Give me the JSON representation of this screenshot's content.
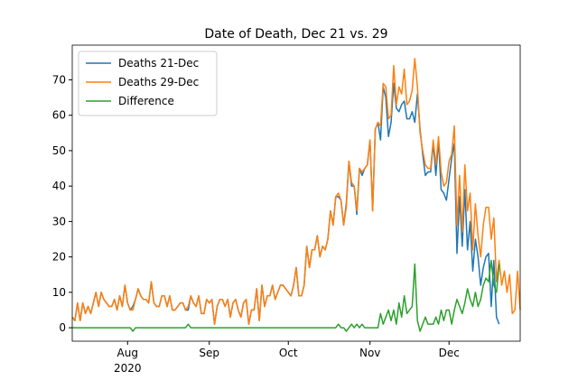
{
  "chart_data": {
    "type": "line",
    "title": "Date of Death, Dec 21 vs. 29",
    "x": [
      "2020-07-11",
      "2020-07-12",
      "2020-07-13",
      "2020-07-14",
      "2020-07-15",
      "2020-07-16",
      "2020-07-17",
      "2020-07-18",
      "2020-07-19",
      "2020-07-20",
      "2020-07-21",
      "2020-07-22",
      "2020-07-23",
      "2020-07-24",
      "2020-07-25",
      "2020-07-26",
      "2020-07-27",
      "2020-07-28",
      "2020-07-29",
      "2020-07-30",
      "2020-07-31",
      "2020-08-01",
      "2020-08-02",
      "2020-08-03",
      "2020-08-04",
      "2020-08-05",
      "2020-08-06",
      "2020-08-07",
      "2020-08-08",
      "2020-08-09",
      "2020-08-10",
      "2020-08-11",
      "2020-08-12",
      "2020-08-13",
      "2020-08-14",
      "2020-08-15",
      "2020-08-16",
      "2020-08-17",
      "2020-08-18",
      "2020-08-19",
      "2020-08-20",
      "2020-08-21",
      "2020-08-22",
      "2020-08-23",
      "2020-08-24",
      "2020-08-25",
      "2020-08-26",
      "2020-08-27",
      "2020-08-28",
      "2020-08-29",
      "2020-08-30",
      "2020-08-31",
      "2020-09-01",
      "2020-09-02",
      "2020-09-03",
      "2020-09-04",
      "2020-09-05",
      "2020-09-06",
      "2020-09-07",
      "2020-09-08",
      "2020-09-09",
      "2020-09-10",
      "2020-09-11",
      "2020-09-12",
      "2020-09-13",
      "2020-09-14",
      "2020-09-15",
      "2020-09-16",
      "2020-09-17",
      "2020-09-18",
      "2020-09-19",
      "2020-09-20",
      "2020-09-21",
      "2020-09-22",
      "2020-09-23",
      "2020-09-24",
      "2020-09-25",
      "2020-09-26",
      "2020-09-27",
      "2020-09-28",
      "2020-09-29",
      "2020-09-30",
      "2020-10-01",
      "2020-10-02",
      "2020-10-03",
      "2020-10-04",
      "2020-10-05",
      "2020-10-06",
      "2020-10-07",
      "2020-10-08",
      "2020-10-09",
      "2020-10-10",
      "2020-10-11",
      "2020-10-12",
      "2020-10-13",
      "2020-10-14",
      "2020-10-15",
      "2020-10-16",
      "2020-10-17",
      "2020-10-18",
      "2020-10-19",
      "2020-10-20",
      "2020-10-21",
      "2020-10-22",
      "2020-10-23",
      "2020-10-24",
      "2020-10-25",
      "2020-10-26",
      "2020-10-27",
      "2020-10-28",
      "2020-10-29",
      "2020-10-30",
      "2020-10-31",
      "2020-11-01",
      "2020-11-02",
      "2020-11-03",
      "2020-11-04",
      "2020-11-05",
      "2020-11-06",
      "2020-11-07",
      "2020-11-08",
      "2020-11-09",
      "2020-11-10",
      "2020-11-11",
      "2020-11-12",
      "2020-11-13",
      "2020-11-14",
      "2020-11-15",
      "2020-11-16",
      "2020-11-17",
      "2020-11-18",
      "2020-11-19",
      "2020-11-20",
      "2020-11-21",
      "2020-11-22",
      "2020-11-23",
      "2020-11-24",
      "2020-11-25",
      "2020-11-26",
      "2020-11-27",
      "2020-11-28",
      "2020-11-29",
      "2020-11-30",
      "2020-12-01",
      "2020-12-02",
      "2020-12-03",
      "2020-12-04",
      "2020-12-05",
      "2020-12-06",
      "2020-12-07",
      "2020-12-08",
      "2020-12-09",
      "2020-12-10",
      "2020-12-11",
      "2020-12-12",
      "2020-12-13",
      "2020-12-14",
      "2020-12-15",
      "2020-12-16",
      "2020-12-17",
      "2020-12-18",
      "2020-12-19",
      "2020-12-20",
      "2020-12-21",
      "2020-12-22",
      "2020-12-23",
      "2020-12-24",
      "2020-12-25",
      "2020-12-26",
      "2020-12-27",
      "2020-12-28"
    ],
    "series": [
      {
        "name": "Deaths 21-Dec",
        "color": "#1f77b4",
        "values": [
          3,
          2,
          7,
          2,
          7,
          4,
          6,
          4,
          7,
          10,
          6,
          10,
          8,
          7,
          6,
          6,
          8,
          5,
          9,
          6,
          12,
          7,
          5,
          6,
          8,
          11,
          9,
          8,
          8,
          7,
          13,
          7,
          6,
          6,
          9,
          9,
          6,
          9,
          5,
          5,
          6,
          7,
          7,
          5,
          5,
          9,
          7,
          6,
          9,
          4,
          4,
          8,
          7,
          8,
          1,
          6,
          8,
          8,
          6,
          8,
          3,
          7,
          8,
          5,
          3,
          7,
          8,
          1,
          5,
          5,
          11,
          2,
          12,
          6,
          9,
          9,
          12,
          8,
          10,
          12,
          12,
          11,
          10,
          9,
          12,
          17,
          9,
          9,
          12,
          23,
          17,
          22,
          22,
          26,
          20,
          23,
          22,
          25,
          33,
          29,
          37,
          37,
          36,
          29,
          35,
          47,
          40,
          40,
          32,
          45,
          43,
          45,
          46,
          53,
          33,
          56,
          58,
          53,
          68,
          65,
          54,
          58,
          69,
          62,
          61,
          63,
          64,
          59,
          59,
          61,
          58,
          66,
          56,
          49,
          43,
          44,
          44,
          52,
          43,
          53,
          39,
          38,
          36,
          42,
          48,
          52,
          21,
          37,
          23,
          39,
          22,
          30,
          16,
          25,
          20,
          12,
          17,
          20,
          21,
          6,
          19,
          3,
          1,
          null,
          null,
          null,
          null,
          null,
          null,
          null,
          null
        ]
      },
      {
        "name": "Deaths 29-Dec",
        "color": "#ff7f0e",
        "values": [
          3,
          2,
          7,
          2,
          7,
          4,
          6,
          4,
          7,
          10,
          6,
          10,
          8,
          7,
          6,
          6,
          8,
          5,
          9,
          6,
          12,
          7,
          5,
          5,
          8,
          11,
          9,
          8,
          8,
          7,
          13,
          7,
          6,
          6,
          9,
          9,
          6,
          9,
          5,
          5,
          6,
          7,
          7,
          5,
          6,
          9,
          7,
          6,
          9,
          4,
          4,
          8,
          7,
          8,
          1,
          6,
          8,
          8,
          6,
          8,
          3,
          7,
          8,
          5,
          3,
          7,
          8,
          1,
          5,
          5,
          11,
          2,
          12,
          6,
          9,
          9,
          12,
          8,
          10,
          12,
          12,
          11,
          10,
          9,
          12,
          17,
          9,
          9,
          12,
          23,
          17,
          22,
          22,
          26,
          20,
          23,
          22,
          25,
          33,
          29,
          37,
          38,
          36,
          29,
          34,
          47,
          41,
          40,
          33,
          45,
          44,
          45,
          46,
          53,
          33,
          56,
          58,
          57,
          69,
          68,
          59,
          60,
          74,
          63,
          68,
          66,
          73,
          63,
          64,
          67,
          76,
          68,
          55,
          50,
          46,
          45,
          45,
          53,
          46,
          54,
          44,
          40,
          41,
          47,
          49,
          57,
          29,
          43,
          27,
          46,
          33,
          38,
          22,
          35,
          26,
          20,
          29,
          34,
          34,
          25,
          31,
          13,
          19,
          12,
          16,
          10,
          15,
          4,
          5,
          16,
          5
        ]
      },
      {
        "name": "Difference",
        "color": "#2ca02c",
        "values": [
          0,
          0,
          0,
          0,
          0,
          0,
          0,
          0,
          0,
          0,
          0,
          0,
          0,
          0,
          0,
          0,
          0,
          0,
          0,
          0,
          0,
          0,
          0,
          -1,
          0,
          0,
          0,
          0,
          0,
          0,
          0,
          0,
          0,
          0,
          0,
          0,
          0,
          0,
          0,
          0,
          0,
          0,
          0,
          0,
          1,
          0,
          0,
          0,
          0,
          0,
          0,
          0,
          0,
          0,
          0,
          0,
          0,
          0,
          0,
          0,
          0,
          0,
          0,
          0,
          0,
          0,
          0,
          0,
          0,
          0,
          0,
          0,
          0,
          0,
          0,
          0,
          0,
          0,
          0,
          0,
          0,
          0,
          0,
          0,
          0,
          0,
          0,
          0,
          0,
          0,
          0,
          0,
          0,
          0,
          0,
          0,
          0,
          0,
          0,
          0,
          0,
          1,
          0,
          0,
          -1,
          0,
          1,
          0,
          1,
          0,
          1,
          0,
          0,
          0,
          0,
          0,
          0,
          4,
          1,
          3,
          5,
          2,
          5,
          1,
          7,
          3,
          9,
          4,
          5,
          6,
          18,
          2,
          -1,
          1,
          3,
          1,
          1,
          1,
          3,
          1,
          5,
          2,
          5,
          5,
          1,
          5,
          8,
          6,
          4,
          7,
          11,
          8,
          6,
          10,
          6,
          8,
          12,
          14,
          13,
          19,
          12,
          10,
          18,
          null,
          null,
          null,
          null,
          null,
          null,
          null,
          null
        ]
      }
    ],
    "xlim": [
      "2020-07-11",
      "2020-12-28"
    ],
    "xticks": [
      {
        "value": "2020-08-01",
        "label": "Aug"
      },
      {
        "value": "2020-09-01",
        "label": "Sep"
      },
      {
        "value": "2020-10-01",
        "label": "Oct"
      },
      {
        "value": "2020-11-01",
        "label": "Nov"
      },
      {
        "value": "2020-12-01",
        "label": "Dec"
      }
    ],
    "x_offset_label": "2020",
    "ylim": [
      -3.8,
      79.8
    ],
    "yticks": [
      0,
      10,
      20,
      30,
      40,
      50,
      60,
      70
    ],
    "grid": false,
    "legend": "upper left"
  }
}
